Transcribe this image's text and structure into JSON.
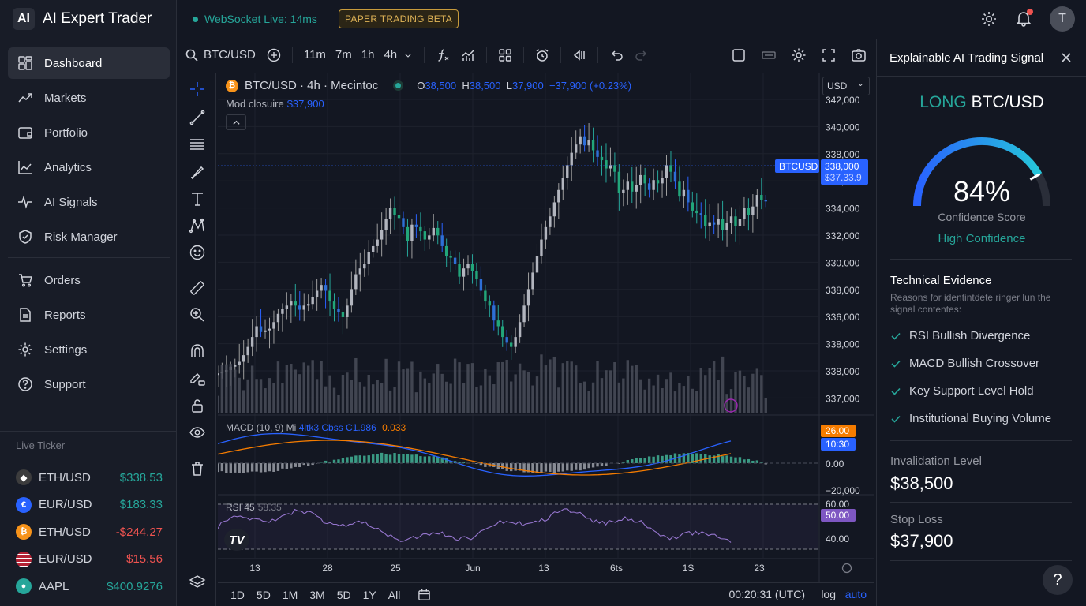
{
  "app": {
    "logo": "AI",
    "title": "AI Expert Trader"
  },
  "nav": [
    {
      "label": "Dashboard",
      "icon": "dashboard-icon",
      "active": true
    },
    {
      "label": "Markets",
      "icon": "trend-icon"
    },
    {
      "label": "Portfolio",
      "icon": "wallet-icon"
    },
    {
      "label": "Analytics",
      "icon": "analytics-icon"
    },
    {
      "label": "AI Signals",
      "icon": "pulse-icon"
    },
    {
      "label": "Risk Manager",
      "icon": "shield-icon"
    },
    {
      "label": "Orders",
      "icon": "cart-icon"
    },
    {
      "label": "Reports",
      "icon": "report-icon"
    },
    {
      "label": "Settings",
      "icon": "gear-icon"
    },
    {
      "label": "Support",
      "icon": "help-icon"
    }
  ],
  "ticker": {
    "title": "Live Ticker",
    "items": [
      {
        "symbol": "ETH/USD",
        "price": "$338.53",
        "dir": "up",
        "icon": "eth-icon",
        "color": "#3c3c3d"
      },
      {
        "symbol": "EUR/USD",
        "price": "$183.33",
        "dir": "up",
        "icon": "eur-icon",
        "color": "#2962ff"
      },
      {
        "symbol": "ETH/USD",
        "price": "-$244.27",
        "dir": "down",
        "icon": "btc-icon",
        "color": "#f7931a"
      },
      {
        "symbol": "EUR/USD",
        "price": "$15.56",
        "dir": "down",
        "icon": "us-flag-icon",
        "color": "#b22234"
      },
      {
        "symbol": "AAPL",
        "price": "$400.9276",
        "dir": "up",
        "icon": "apple-icon",
        "color": "#26a69a"
      }
    ]
  },
  "topbar": {
    "ws_status": "WebSocket Live: 14ms",
    "badge": "PAPER TRADING  BETA",
    "avatar": "T"
  },
  "toolbar": {
    "symbol": "BTC/USD",
    "intervals": [
      "11m",
      "7m",
      "1h",
      "4h"
    ]
  },
  "chart": {
    "legend_symbol": "BTC/USD · 4h · Mecintoc",
    "ohlc": {
      "o_label": "O",
      "o": "38,500",
      "h_label": "H",
      "h": "38,500",
      "l_label": "L",
      "l": "37,900",
      "change": "−37,900 (+0.23%)"
    },
    "mod_label": "Mod closuire",
    "mod_value": "$37,900",
    "currency": "USD",
    "last_tag": "BTCUSD",
    "last_price": "338,000",
    "last_sub": "$37.33.9",
    "macd_legend": "MACD (10, 9)  Mi",
    "macd_v1": "4ltk3  Cbss  C1.986",
    "macd_v2": "0.033",
    "rsi_legend": "RSI 45",
    "rsi_value": "58.35",
    "tv_logo": "TV"
  },
  "chart_data": {
    "type": "candlestick",
    "price_axis": [
      "342,000",
      "340,000",
      "338,000",
      "336,000",
      "334,000",
      "332,000",
      "330,000",
      "338,000",
      "336,000",
      "338,000",
      "338,000",
      "337,000"
    ],
    "macd_axis": [
      "0.00",
      "−20,000"
    ],
    "macd_tags": [
      "26.00",
      "10:30"
    ],
    "rsi_axis": [
      "60.00",
      "40.00"
    ],
    "rsi_tag": "50.00",
    "x_ticks": [
      "13",
      "28",
      "25",
      "Jun",
      "13",
      "6ts",
      "1S",
      "23"
    ],
    "close_series": [
      428,
      434,
      420,
      410,
      418,
      405,
      396,
      408,
      400,
      392,
      405,
      398,
      401,
      396,
      410,
      412,
      415,
      425,
      440,
      432,
      450,
      462,
      470,
      455,
      448,
      452,
      440,
      448,
      458,
      446,
      438,
      450,
      440,
      436,
      462,
      470,
      466,
      476,
      480,
      488,
      500,
      494,
      505,
      495,
      485,
      470,
      455,
      440,
      425,
      408,
      395,
      380,
      360,
      340,
      320,
      300,
      280,
      262,
      250,
      255,
      262,
      275,
      282,
      300,
      305,
      318,
      332,
      342,
      350,
      345,
      335,
      350,
      358,
      360,
      372,
      385,
      394,
      385,
      380,
      390,
      395,
      398,
      378,
      395,
      406,
      410,
      418,
      405,
      392,
      380,
      372,
      365,
      350,
      345,
      338,
      320,
      300,
      286,
      292,
      296,
      305,
      318,
      325,
      318,
      310,
      302,
      300,
      295,
      300,
      305,
      300,
      296,
      290,
      280,
      272,
      270,
      268,
      275,
      262,
      250,
      240,
      232,
      228,
      226,
      222,
      220,
      218,
      216,
      214
    ]
  },
  "bottombar": {
    "ranges": [
      "1D",
      "5D",
      "1M",
      "3M",
      "5D",
      "1Y",
      "All"
    ],
    "time": "00:20:31 (UTC)",
    "log": "log",
    "auto": "auto"
  },
  "panel": {
    "title": "Explainable AI Trading Signal",
    "signal_dir": "LONG",
    "signal_sym": "BTC/USD",
    "confidence": 84,
    "confidence_text": "84%",
    "confidence_label": "Confidence Score",
    "confidence_level": "High Confidence",
    "evidence_title": "Technical Evidence",
    "evidence_sub": "Reasons for identintdete ringer lun the signal contentes:",
    "evidence": [
      "RSI Bullish Divergence",
      "MACD Bullish Crossover",
      "Key Support Level Hold",
      "Institutional Buying Volume"
    ],
    "invalidation_label": "Invalidation Level",
    "invalidation_value": "$38,500",
    "stoploss_label": "Stop Loss",
    "stoploss_value": "$37,900",
    "help": "?"
  }
}
